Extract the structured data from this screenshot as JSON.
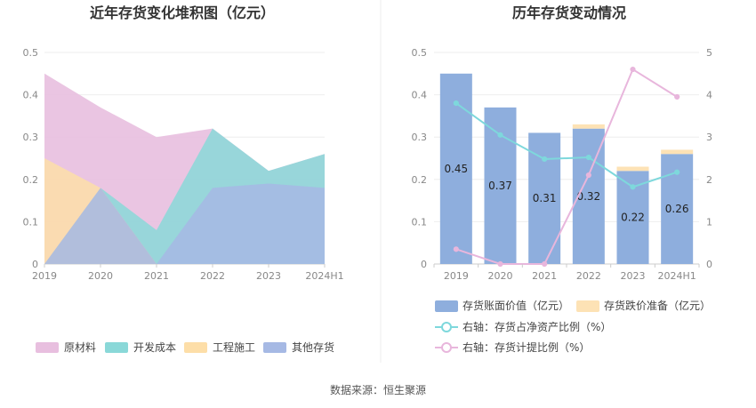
{
  "chart_data": [
    {
      "type": "area",
      "title": "近年存货变化堆积图（亿元）",
      "categories": [
        "2019",
        "2020",
        "2021",
        "2022",
        "2023",
        "2024H1"
      ],
      "ylim": [
        0,
        0.5
      ],
      "yticks": [
        "0",
        "0.1",
        "0.2",
        "0.3",
        "0.4",
        "0.5"
      ],
      "legend_position": "bottom",
      "grid": true,
      "series": [
        {
          "name": "原材料",
          "values": [
            0.45,
            0.37,
            0.3,
            0.32,
            0.22,
            0.26
          ],
          "color": "#e8bfdf"
        },
        {
          "name": "开发成本",
          "values": [
            0.0,
            0.18,
            0.08,
            0.32,
            0.22,
            0.26
          ],
          "color": "#8ad8d8"
        },
        {
          "name": "工程施工",
          "values": [
            0.25,
            0.18,
            0.0,
            0.0,
            0.0,
            0.0
          ],
          "color": "#fddea8"
        },
        {
          "name": "其他存货",
          "values": [
            0.0,
            0.18,
            0.0,
            0.18,
            0.19,
            0.18
          ],
          "color": "#a6b9e4"
        }
      ]
    },
    {
      "type": "bar",
      "title": "历年存货变动情况",
      "categories": [
        "2019",
        "2020",
        "2021",
        "2022",
        "2023",
        "2024H1"
      ],
      "ylim": [
        0,
        0.5
      ],
      "yticks": [
        "0",
        "0.1",
        "0.2",
        "0.3",
        "0.4",
        "0.5"
      ],
      "y2lim": [
        0,
        5
      ],
      "y2ticks": [
        "0",
        "1",
        "2",
        "3",
        "4",
        "5"
      ],
      "legend_position": "bottom",
      "grid": true,
      "series": [
        {
          "name": "存货账面价值（亿元）",
          "axis": "left",
          "kind": "bar",
          "values": [
            0.45,
            0.37,
            0.31,
            0.32,
            0.22,
            0.26
          ],
          "labels": [
            "0.45",
            "0.37",
            "0.31",
            "0.32",
            "0.22",
            "0.26"
          ],
          "color": "#8eaedd"
        },
        {
          "name": "存货跌价准备（亿元）",
          "axis": "left",
          "kind": "bar",
          "values": [
            0,
            0,
            0,
            0.01,
            0.01,
            0.01
          ],
          "color": "#fde2b5"
        },
        {
          "name": "右轴：存货占净资产比例（%）",
          "axis": "right",
          "kind": "line",
          "values": [
            3.8,
            3.05,
            2.48,
            2.52,
            1.82,
            2.17
          ],
          "color": "#7ed8dc"
        },
        {
          "name": "右轴：存货计提比例（%）",
          "axis": "right",
          "kind": "line",
          "values": [
            0.35,
            0.0,
            0.0,
            2.1,
            4.6,
            3.95
          ],
          "color": "#e8b6dc"
        }
      ]
    }
  ],
  "footer": {
    "source": "数据来源：恒生聚源"
  }
}
